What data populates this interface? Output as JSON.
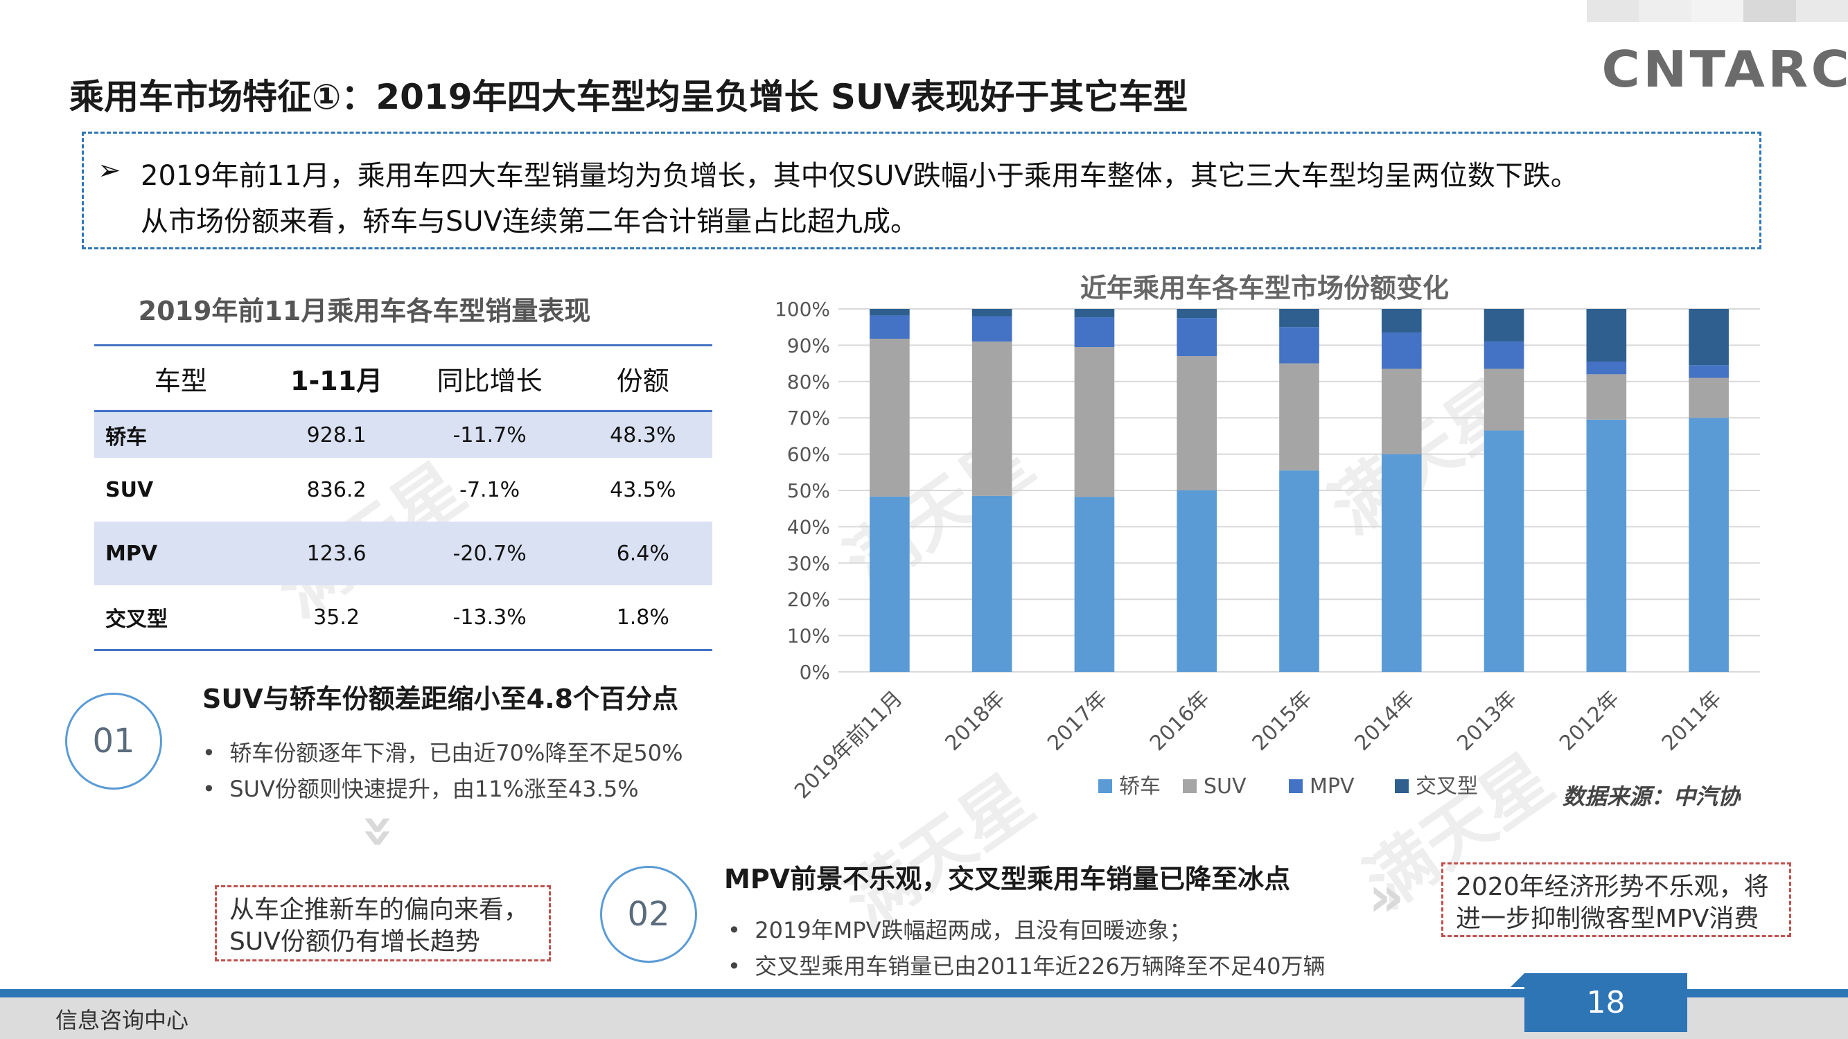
{
  "header": {
    "title": "乘用车市场特征①：2019年四大车型均呈负增长 SUV表现好于其它车型",
    "logo": "CNTARC"
  },
  "summary": {
    "line1": "2019年前11月，乘用车四大车型销量均为负增长，其中仅SUV跌幅小于乘用车整体，其它三大车型均呈两位数下跌。",
    "line2": "从市场份额来看，轿车与SUV连续第二年合计销量占比超九成。"
  },
  "table": {
    "title": "2019年前11月乘用车各车型销量表现",
    "headers": [
      "车型",
      "1-11月",
      "同比增长",
      "份额"
    ],
    "rows": [
      [
        "轿车",
        "928.1",
        "-11.7%",
        "48.3%"
      ],
      [
        "SUV",
        "836.2",
        "-7.1%",
        "43.5%"
      ],
      [
        "MPV",
        "123.6",
        "-20.7%",
        "6.4%"
      ],
      [
        "交叉型",
        "35.2",
        "-13.3%",
        "1.8%"
      ]
    ]
  },
  "section1": {
    "number": "01",
    "title": "SUV与轿车份额差距缩小至4.8个百分点",
    "bullets": [
      "轿车份额逐年下滑，已由近70%降至不足50%",
      "SUV份额则快速提升，由11%涨至43.5%"
    ],
    "note_line1": "从车企推新车的偏向来看，",
    "note_line2": "SUV份额仍有增长趋势"
  },
  "section2": {
    "number": "02",
    "title": "MPV前景不乐观，交叉型乘用车销量已降至冰点",
    "bullets": [
      "2019年MPV跌幅超两成，且没有回暖迹象；",
      "交叉型乘用车销量已由2011年近226万辆降至不足40万辆"
    ],
    "note_line1": "2020年经济形势不乐观，将",
    "note_line2": "进一步抑制微客型MPV消费"
  },
  "chart_data": {
    "type": "bar",
    "stacked": true,
    "title": "近年乘用车各车型市场份额变化",
    "categories": [
      "2019年前11月",
      "2018年",
      "2017年",
      "2016年",
      "2015年",
      "2014年",
      "2013年",
      "2012年",
      "2011年"
    ],
    "series": [
      {
        "name": "轿车",
        "color": "#5b9bd5",
        "values": [
          48.3,
          48.5,
          48.2,
          50.0,
          55.5,
          60.0,
          66.5,
          69.5,
          70.0
        ]
      },
      {
        "name": "SUV",
        "color": "#a5a5a5",
        "values": [
          43.5,
          42.5,
          41.3,
          37.0,
          29.5,
          23.5,
          17.0,
          12.5,
          11.0
        ]
      },
      {
        "name": "MPV",
        "color": "#4472c4",
        "values": [
          6.4,
          7.0,
          8.2,
          10.5,
          10.0,
          10.0,
          7.5,
          3.5,
          3.5
        ]
      },
      {
        "name": "交叉型",
        "color": "#2e5f8f",
        "values": [
          1.8,
          2.0,
          2.3,
          2.5,
          5.0,
          6.5,
          9.0,
          14.5,
          15.5
        ]
      }
    ],
    "yticks": [
      "0%",
      "10%",
      "20%",
      "30%",
      "40%",
      "50%",
      "60%",
      "70%",
      "80%",
      "90%",
      "100%"
    ],
    "ylim": [
      0,
      100
    ],
    "legend": "bottom",
    "grid": true
  },
  "source": "数据来源：中汽协",
  "footer": {
    "label": "信息咨询中心",
    "page": "18"
  },
  "colors": {
    "accent": "#2e75b6",
    "red": "#c0504d"
  }
}
